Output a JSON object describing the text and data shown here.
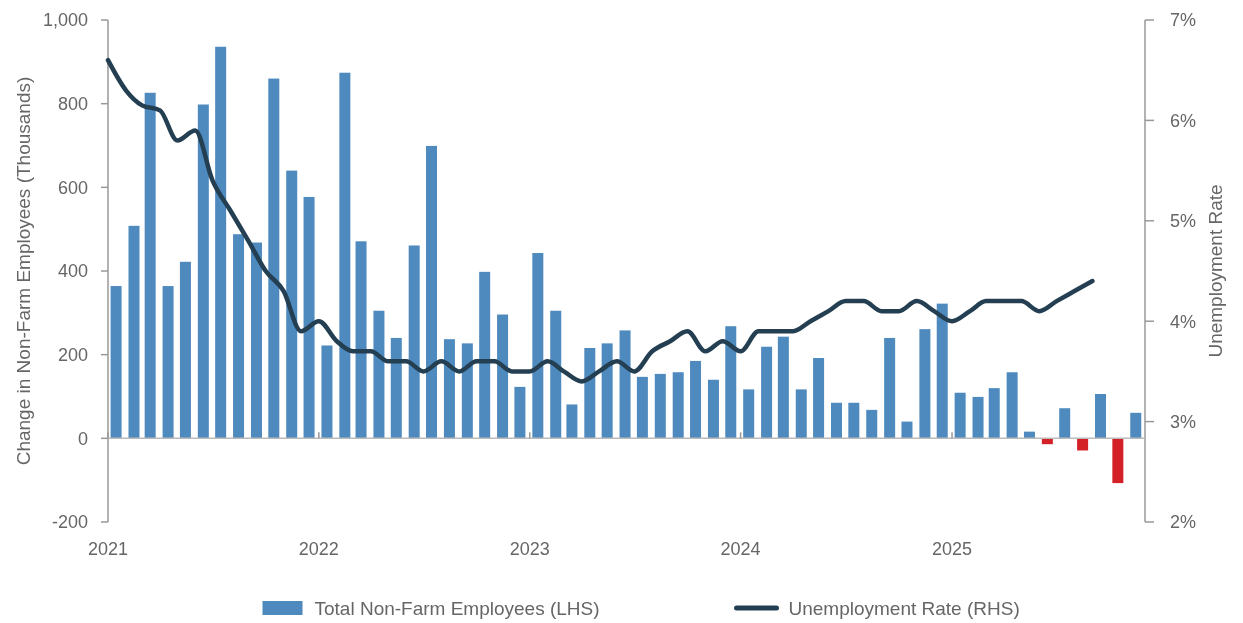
{
  "chart_data": {
    "type": "bar",
    "xlabel": null,
    "ylabel": "Change in Non-Farm Employees (Thousands)",
    "y2label": "Unemployment Rate",
    "xlim": [
      "2021-01",
      "2025-12"
    ],
    "xticks": [
      {
        "value": "2021-01",
        "label": "2021"
      },
      {
        "value": "2022-01",
        "label": "2022"
      },
      {
        "value": "2023-01",
        "label": "2023"
      },
      {
        "value": "2024-01",
        "label": "2024"
      },
      {
        "value": "2025-01",
        "label": "2025"
      }
    ],
    "ylim": [
      -200,
      1000
    ],
    "yticks": [
      -200,
      0,
      200,
      400,
      600,
      800,
      {
        "value": 1000,
        "label": "1,000"
      }
    ],
    "y2lim": [
      2,
      7
    ],
    "y2ticks": [
      {
        "value": 2,
        "label": "2%"
      },
      {
        "value": 3,
        "label": "3%"
      },
      {
        "value": 4,
        "label": "4%"
      },
      {
        "value": 5,
        "label": "5%"
      },
      {
        "value": 6,
        "label": "6%"
      },
      {
        "value": 7,
        "label": "7%"
      }
    ],
    "legend": "bottom",
    "series": [
      {
        "name": "Total Non-Farm Employees (LHS)",
        "color": "#4e8abe",
        "x": [
          "2021-01-15",
          "2021-02-15",
          "2021-03-15",
          "2021-04-15",
          "2021-05-15",
          "2021-06-15",
          "2021-07-15",
          "2021-08-15",
          "2021-09-15",
          "2021-10-15",
          "2021-11-15",
          "2021-12-15",
          "2022-01-15",
          "2022-02-15",
          "2022-03-15",
          "2022-04-15",
          "2022-05-15",
          "2022-06-15",
          "2022-07-15",
          "2022-08-15",
          "2022-09-15",
          "2022-10-15",
          "2022-11-15",
          "2022-12-15",
          "2023-01-15",
          "2023-02-15",
          "2023-03-15",
          "2023-04-15",
          "2023-05-15",
          "2023-06-15",
          "2023-07-15",
          "2023-08-15",
          "2023-09-15",
          "2023-10-15",
          "2023-11-15",
          "2023-12-15",
          "2024-01-15",
          "2024-02-15",
          "2024-03-15",
          "2024-04-15",
          "2024-05-15",
          "2024-06-15",
          "2024-07-15",
          "2024-08-15",
          "2024-09-15",
          "2024-10-15",
          "2024-11-15",
          "2024-12-15",
          "2025-01-15",
          "2025-02-15",
          "2025-03-15",
          "2025-04-15",
          "2025-05-15",
          "2025-06-15",
          "2025-07-15",
          "2025-08-15",
          "2025-09-15",
          "2025-10-15",
          "2025-11-15"
        ],
        "values": [
          364,
          508,
          826,
          364,
          422,
          798,
          936,
          488,
          468,
          860,
          640,
          577,
          222,
          874,
          471,
          305,
          240,
          461,
          699,
          237,
          227,
          398,
          296,
          123,
          443,
          305,
          81,
          216,
          227,
          258,
          147,
          154,
          158,
          185,
          140,
          268,
          117,
          219,
          243,
          117,
          192,
          85,
          85,
          68,
          240,
          40,
          261,
          322,
          109,
          99,
          120,
          158,
          16,
          -14,
          72,
          -29,
          106,
          -107,
          61
        ],
        "colors": [
          "#4e8abe",
          "#4e8abe",
          "#4e8abe",
          "#4e8abe",
          "#4e8abe",
          "#4e8abe",
          "#4e8abe",
          "#4e8abe",
          "#4e8abe",
          "#4e8abe",
          "#4e8abe",
          "#4e8abe",
          "#4e8abe",
          "#4e8abe",
          "#4e8abe",
          "#4e8abe",
          "#4e8abe",
          "#4e8abe",
          "#4e8abe",
          "#4e8abe",
          "#4e8abe",
          "#4e8abe",
          "#4e8abe",
          "#4e8abe",
          "#4e8abe",
          "#4e8abe",
          "#4e8abe",
          "#4e8abe",
          "#4e8abe",
          "#4e8abe",
          "#4e8abe",
          "#4e8abe",
          "#4e8abe",
          "#4e8abe",
          "#4e8abe",
          "#4e8abe",
          "#4e8abe",
          "#4e8abe",
          "#4e8abe",
          "#4e8abe",
          "#4e8abe",
          "#4e8abe",
          "#4e8abe",
          "#4e8abe",
          "#4e8abe",
          "#4e8abe",
          "#4e8abe",
          "#4e8abe",
          "#4e8abe",
          "#4e8abe",
          "#4e8abe",
          "#4e8abe",
          "#4e8abe",
          "#d42027",
          "#4e8abe",
          "#d42027",
          "#4e8abe",
          "#d42027",
          "#4e8abe"
        ]
      },
      {
        "name": "Unemployment Rate (RHS)",
        "type": "line",
        "axis": "y2",
        "color": "#243f52",
        "x": [
          "2021-01",
          "2021-02",
          "2021-03",
          "2021-04",
          "2021-05",
          "2021-06",
          "2021-07",
          "2021-08",
          "2021-09",
          "2021-10",
          "2021-11",
          "2021-12",
          "2022-01",
          "2022-02",
          "2022-03",
          "2022-04",
          "2022-05",
          "2022-06",
          "2022-07",
          "2022-08",
          "2022-09",
          "2022-10",
          "2022-11",
          "2022-12",
          "2023-01",
          "2023-02",
          "2023-03",
          "2023-04",
          "2023-05",
          "2023-06",
          "2023-07",
          "2023-08",
          "2023-09",
          "2023-10",
          "2023-11",
          "2023-12",
          "2024-01",
          "2024-02",
          "2024-03",
          "2024-04",
          "2024-05",
          "2024-06",
          "2024-07",
          "2024-08",
          "2024-09",
          "2024-10",
          "2024-11",
          "2024-12",
          "2025-01",
          "2025-02",
          "2025-03",
          "2025-04",
          "2025-05",
          "2025-06",
          "2025-07",
          "2025-08",
          "2025-09"
        ],
        "values": [
          6.6,
          6.3,
          6.15,
          6.1,
          5.8,
          5.9,
          5.4,
          5.1,
          4.8,
          4.5,
          4.3,
          3.9,
          4.0,
          3.8,
          3.7,
          3.7,
          3.6,
          3.6,
          3.5,
          3.6,
          3.5,
          3.6,
          3.6,
          3.5,
          3.5,
          3.6,
          3.5,
          3.4,
          3.5,
          3.6,
          3.5,
          3.7,
          3.8,
          3.9,
          3.7,
          3.8,
          3.7,
          3.9,
          3.9,
          3.9,
          4.0,
          4.1,
          4.2,
          4.2,
          4.1,
          4.1,
          4.2,
          4.1,
          4.0,
          4.1,
          4.2,
          4.2,
          4.2,
          4.1,
          4.2,
          4.3,
          4.4
        ]
      }
    ]
  }
}
